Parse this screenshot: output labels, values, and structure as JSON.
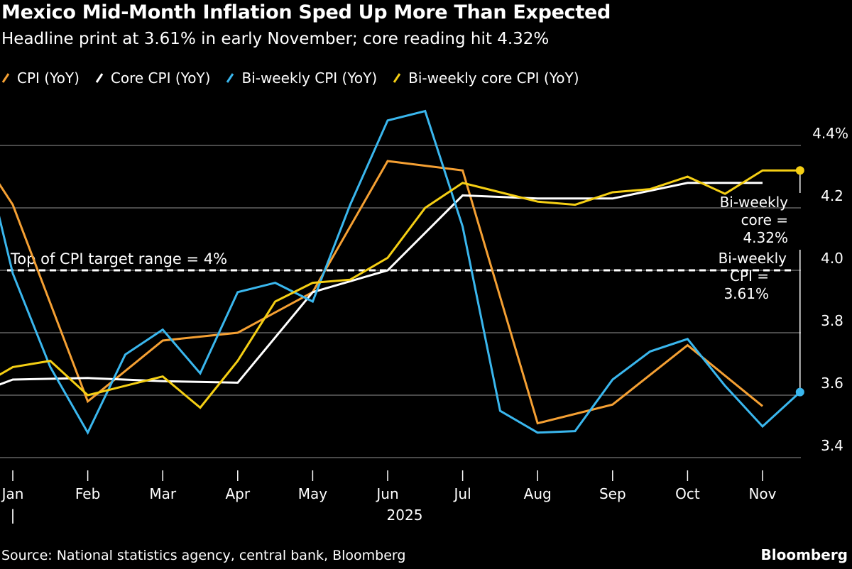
{
  "chart_data": {
    "type": "line",
    "title": "Mexico Mid-Month Inflation Sped Up More Than Expected",
    "subtitle": "Headline print at 3.61% in early November; core reading hit 4.32%",
    "xlabel": "2025",
    "ylabel": "",
    "ylim": [
      3.35,
      4.5
    ],
    "yticks": [
      {
        "value": 4.4,
        "label": "4.4%"
      },
      {
        "value": 4.2,
        "label": "4.2"
      },
      {
        "value": 4.0,
        "label": "4.0"
      },
      {
        "value": 3.8,
        "label": "3.8"
      },
      {
        "value": 3.6,
        "label": "3.6"
      },
      {
        "value": 3.4,
        "label": "3.4"
      }
    ],
    "xticks": [
      {
        "date": "2025-01-01",
        "label": "Jan"
      },
      {
        "date": "2025-02-01",
        "label": "Feb"
      },
      {
        "date": "2025-03-01",
        "label": "Mar"
      },
      {
        "date": "2025-04-01",
        "label": "Apr"
      },
      {
        "date": "2025-05-01",
        "label": "May"
      },
      {
        "date": "2025-06-01",
        "label": "Jun"
      },
      {
        "date": "2025-07-01",
        "label": "Jul"
      },
      {
        "date": "2025-08-01",
        "label": "Aug"
      },
      {
        "date": "2025-09-01",
        "label": "Sep"
      },
      {
        "date": "2025-10-01",
        "label": "Oct"
      },
      {
        "date": "2025-11-01",
        "label": "Nov"
      }
    ],
    "year_separator": "|",
    "grid": true,
    "legend_position": "top-left",
    "series": [
      {
        "name": "CPI (YoY)",
        "color": "#f5a033",
        "x": [
          "2024-12-01",
          "2025-01-01",
          "2025-02-01",
          "2025-03-01",
          "2025-04-01",
          "2025-05-01",
          "2025-06-01",
          "2025-07-01",
          "2025-08-01",
          "2025-09-01",
          "2025-10-01",
          "2025-11-01"
        ],
        "y": [
          4.58,
          4.21,
          3.58,
          3.775,
          3.8,
          3.93,
          4.35,
          4.32,
          3.51,
          3.57,
          3.76,
          3.565
        ]
      },
      {
        "name": "Core CPI (YoY)",
        "color": "#ffffff",
        "x": [
          "2024-12-01",
          "2025-01-01",
          "2025-02-01",
          "2025-03-01",
          "2025-04-01",
          "2025-05-01",
          "2025-06-01",
          "2025-07-01",
          "2025-08-01",
          "2025-09-01",
          "2025-10-01",
          "2025-11-01"
        ],
        "y": [
          3.56,
          3.65,
          3.655,
          3.645,
          3.64,
          3.93,
          4.0,
          4.24,
          4.23,
          4.23,
          4.28,
          4.28
        ]
      },
      {
        "name": "Bi-weekly CPI (YoY)",
        "color": "#3ab7ee",
        "x": [
          "2024-12-16",
          "2025-01-01",
          "2025-01-16",
          "2025-02-01",
          "2025-02-16",
          "2025-03-01",
          "2025-03-16",
          "2025-04-01",
          "2025-04-16",
          "2025-05-01",
          "2025-05-16",
          "2025-06-01",
          "2025-06-16",
          "2025-07-01",
          "2025-07-16",
          "2025-08-01",
          "2025-08-16",
          "2025-09-01",
          "2025-09-16",
          "2025-10-01",
          "2025-10-16",
          "2025-11-01",
          "2025-11-16"
        ],
        "y": [
          4.49,
          3.99,
          3.69,
          3.48,
          3.73,
          3.81,
          3.67,
          3.93,
          3.96,
          3.9,
          4.21,
          4.48,
          4.51,
          4.14,
          3.55,
          3.48,
          3.485,
          3.65,
          3.74,
          3.78,
          3.63,
          3.5,
          3.61
        ]
      },
      {
        "name": "Bi-weekly core CPI (YoY)",
        "color": "#f5cf14",
        "x": [
          "2024-12-16",
          "2025-01-01",
          "2025-01-16",
          "2025-02-01",
          "2025-02-16",
          "2025-03-01",
          "2025-03-16",
          "2025-04-01",
          "2025-04-16",
          "2025-05-01",
          "2025-05-16",
          "2025-06-01",
          "2025-06-16",
          "2025-07-01",
          "2025-07-16",
          "2025-08-01",
          "2025-08-16",
          "2025-09-01",
          "2025-09-16",
          "2025-10-01",
          "2025-10-16",
          "2025-11-01",
          "2025-11-16"
        ],
        "y": [
          3.62,
          3.69,
          3.71,
          3.6,
          3.63,
          3.66,
          3.56,
          3.71,
          3.9,
          3.96,
          3.97,
          4.04,
          4.2,
          4.28,
          4.25,
          4.22,
          4.21,
          4.25,
          4.26,
          4.3,
          4.245,
          4.32,
          4.32
        ]
      }
    ],
    "reference_line": {
      "value": 4.0,
      "label": "Top of CPI target range = 4%"
    },
    "annotations": [
      {
        "series": "Bi-weekly core CPI (YoY)",
        "lines": [
          "Bi-weekly",
          "core =",
          "4.32%"
        ]
      },
      {
        "series": "Bi-weekly CPI (YoY)",
        "lines": [
          "Bi-weekly",
          "CPI =",
          "3.61%"
        ]
      }
    ]
  },
  "footer": {
    "source": "Source: National statistics agency, central bank, Bloomberg",
    "brand": "Bloomberg"
  }
}
